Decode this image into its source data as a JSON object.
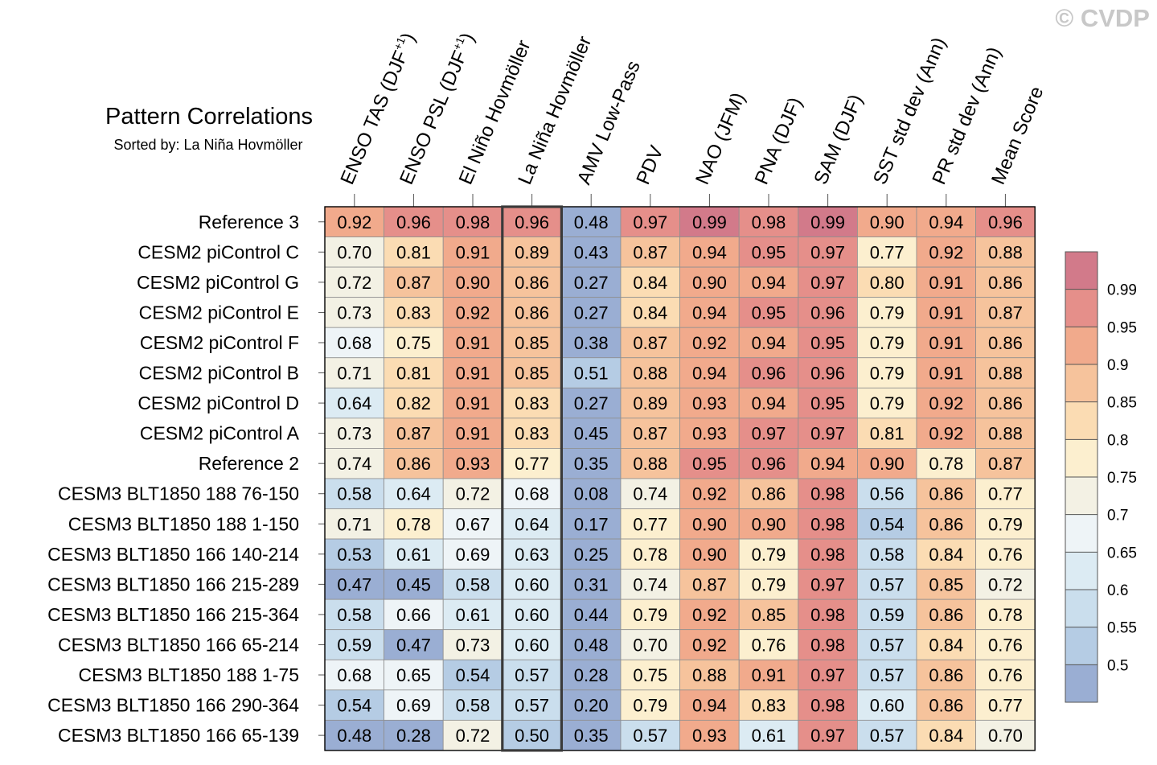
{
  "chart_data": {
    "type": "heatmap",
    "title": "Pattern Correlations",
    "subtitle": "Sorted by: La Niña Hovmöller",
    "watermark": "© CVDP",
    "highlight_column": "La Niña Hovmöller",
    "columns": [
      {
        "text": "ENSO TAS (DJF",
        "sup": "+1",
        "close": ")"
      },
      {
        "text": "ENSO PSL (DJF",
        "sup": "+1",
        "close": ")"
      },
      {
        "text": "El Niño Hovmöller"
      },
      {
        "text": "La Niña Hovmöller"
      },
      {
        "text": "AMV Low-Pass"
      },
      {
        "text": "PDV"
      },
      {
        "text": "NAO (JFM)"
      },
      {
        "text": "PNA (DJF)"
      },
      {
        "text": "SAM (DJF)"
      },
      {
        "text": "SST std dev (Ann)"
      },
      {
        "text": "PR std dev (Ann)"
      },
      {
        "text": "Mean Score"
      }
    ],
    "rows": [
      {
        "name": "Reference 3",
        "values": [
          0.92,
          0.96,
          0.98,
          0.96,
          0.48,
          0.97,
          0.99,
          0.98,
          0.99,
          0.9,
          0.94,
          0.96
        ]
      },
      {
        "name": "CESM2 piControl C",
        "values": [
          0.7,
          0.81,
          0.91,
          0.89,
          0.43,
          0.87,
          0.94,
          0.95,
          0.97,
          0.77,
          0.92,
          0.88
        ]
      },
      {
        "name": "CESM2 piControl G",
        "values": [
          0.72,
          0.87,
          0.9,
          0.86,
          0.27,
          0.84,
          0.9,
          0.94,
          0.97,
          0.8,
          0.91,
          0.86
        ]
      },
      {
        "name": "CESM2 piControl E",
        "values": [
          0.73,
          0.83,
          0.92,
          0.86,
          0.27,
          0.84,
          0.94,
          0.95,
          0.96,
          0.79,
          0.91,
          0.87
        ]
      },
      {
        "name": "CESM2 piControl F",
        "values": [
          0.68,
          0.75,
          0.91,
          0.85,
          0.38,
          0.87,
          0.92,
          0.94,
          0.95,
          0.79,
          0.91,
          0.86
        ]
      },
      {
        "name": "CESM2 piControl B",
        "values": [
          0.71,
          0.81,
          0.91,
          0.85,
          0.51,
          0.88,
          0.94,
          0.96,
          0.96,
          0.79,
          0.91,
          0.88
        ]
      },
      {
        "name": "CESM2 piControl D",
        "values": [
          0.64,
          0.82,
          0.91,
          0.83,
          0.27,
          0.89,
          0.93,
          0.94,
          0.95,
          0.79,
          0.92,
          0.86
        ]
      },
      {
        "name": "CESM2 piControl A",
        "values": [
          0.73,
          0.87,
          0.91,
          0.83,
          0.45,
          0.87,
          0.93,
          0.97,
          0.97,
          0.81,
          0.92,
          0.88
        ]
      },
      {
        "name": "Reference 2",
        "values": [
          0.74,
          0.86,
          0.93,
          0.77,
          0.35,
          0.88,
          0.95,
          0.96,
          0.94,
          0.9,
          0.78,
          0.87
        ]
      },
      {
        "name": "CESM3 BLT1850 188 76-150",
        "values": [
          0.58,
          0.64,
          0.72,
          0.68,
          0.08,
          0.74,
          0.92,
          0.86,
          0.98,
          0.56,
          0.86,
          0.77
        ]
      },
      {
        "name": "CESM3 BLT1850 188 1-150",
        "values": [
          0.71,
          0.78,
          0.67,
          0.64,
          0.17,
          0.77,
          0.9,
          0.9,
          0.98,
          0.54,
          0.86,
          0.79
        ]
      },
      {
        "name": "CESM3 BLT1850 166 140-214",
        "values": [
          0.53,
          0.61,
          0.69,
          0.63,
          0.25,
          0.78,
          0.9,
          0.79,
          0.98,
          0.58,
          0.84,
          0.76
        ]
      },
      {
        "name": "CESM3 BLT1850 166 215-289",
        "values": [
          0.47,
          0.45,
          0.58,
          0.6,
          0.31,
          0.74,
          0.87,
          0.79,
          0.97,
          0.57,
          0.85,
          0.72
        ]
      },
      {
        "name": "CESM3 BLT1850 166 215-364",
        "values": [
          0.58,
          0.66,
          0.61,
          0.6,
          0.44,
          0.79,
          0.92,
          0.85,
          0.98,
          0.59,
          0.86,
          0.78
        ]
      },
      {
        "name": "CESM3 BLT1850 166 65-214",
        "values": [
          0.59,
          0.47,
          0.73,
          0.6,
          0.48,
          0.7,
          0.92,
          0.76,
          0.98,
          0.57,
          0.84,
          0.76
        ]
      },
      {
        "name": "CESM3 BLT1850 188 1-75",
        "values": [
          0.68,
          0.65,
          0.54,
          0.57,
          0.28,
          0.75,
          0.88,
          0.91,
          0.97,
          0.57,
          0.86,
          0.76
        ]
      },
      {
        "name": "CESM3 BLT1850 166 290-364",
        "values": [
          0.54,
          0.69,
          0.58,
          0.57,
          0.2,
          0.79,
          0.94,
          0.83,
          0.98,
          0.6,
          0.86,
          0.77
        ]
      },
      {
        "name": "CESM3 BLT1850 166 65-139",
        "values": [
          0.48,
          0.28,
          0.72,
          0.5,
          0.35,
          0.57,
          0.93,
          0.61,
          0.97,
          0.57,
          0.84,
          0.7
        ]
      }
    ],
    "colorbar": {
      "levels": [
        0.5,
        0.55,
        0.6,
        0.65,
        0.7,
        0.75,
        0.8,
        0.85,
        0.9,
        0.95,
        0.99
      ],
      "labels": [
        "0.5",
        "0.55",
        "0.6",
        "0.65",
        "0.7",
        "0.75",
        "0.8",
        "0.85",
        "0.9",
        "0.95",
        "0.99"
      ],
      "colors": [
        "#9aaed3",
        "#b5cce4",
        "#cadeed",
        "#dcebf3",
        "#eef4f7",
        "#f3f1e4",
        "#fcefcf",
        "#fbdcb3",
        "#f6c39c",
        "#f1aa8c",
        "#e58f8a",
        "#d27a8a"
      ]
    }
  }
}
